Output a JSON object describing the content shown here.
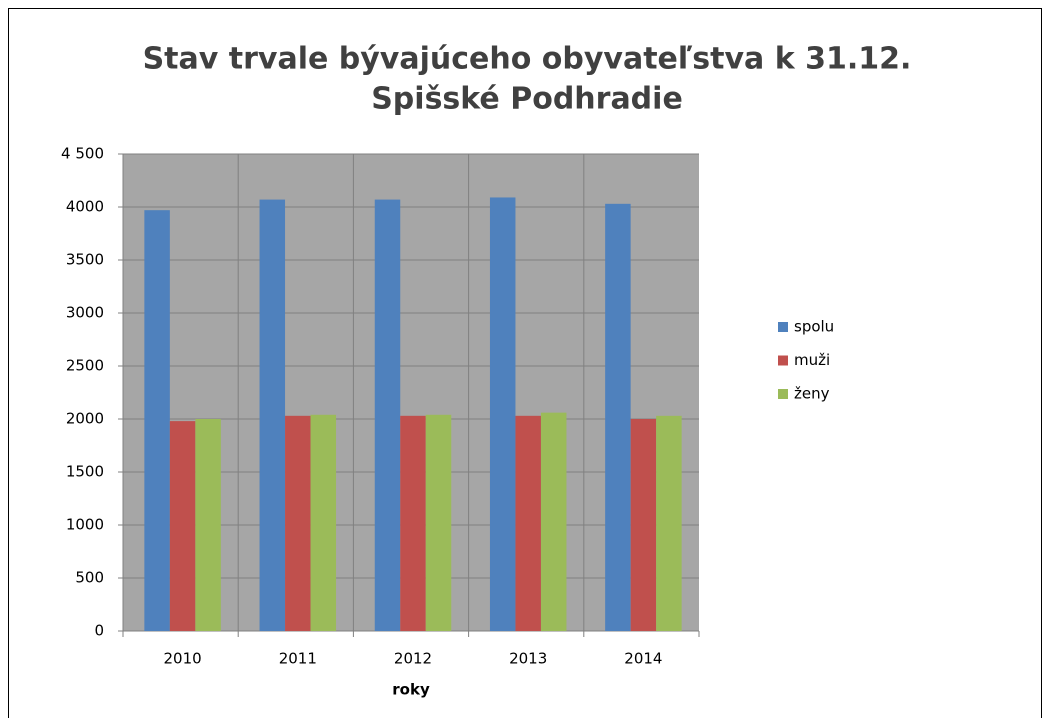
{
  "chart_data": {
    "type": "bar",
    "title": [
      "Stav trvale bývajúceho obyvateľstva k 31.12.",
      "Spišské Podhradie"
    ],
    "x_label": "roky",
    "categories": [
      "2010",
      "2011",
      "2012",
      "2013",
      "2014"
    ],
    "series": [
      {
        "name": "spolu",
        "color": "#4f81bd",
        "values": [
          3970,
          4070,
          4070,
          4090,
          4030
        ]
      },
      {
        "name": "muži",
        "color": "#c0504d",
        "values": [
          1980,
          2030,
          2030,
          2030,
          2000
        ]
      },
      {
        "name": "ženy",
        "color": "#9bbb59",
        "values": [
          2000,
          2040,
          2040,
          2060,
          2030
        ]
      }
    ],
    "ylim": [
      0,
      4500
    ],
    "yticks": [
      0,
      500,
      1000,
      1500,
      2000,
      2500,
      3000,
      3500,
      4000,
      {
        "value": 4500,
        "label": "4 500"
      }
    ],
    "grid": true,
    "legend": "right",
    "plot_background": "#a6a6a6"
  }
}
